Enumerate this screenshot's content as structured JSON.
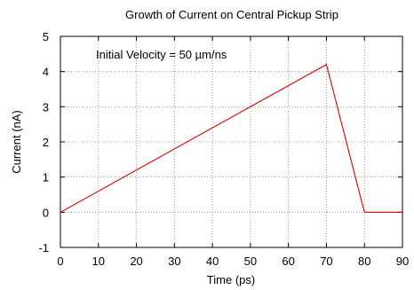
{
  "chart_data": {
    "type": "line",
    "title": "Growth of Current on Central Pickup Strip",
    "xlabel": "Time (ps)",
    "ylabel": "Current (nA)",
    "xlim": [
      0,
      90
    ],
    "ylim": [
      -1,
      5
    ],
    "x_ticks": [
      0,
      10,
      20,
      30,
      40,
      50,
      60,
      70,
      80,
      90
    ],
    "y_ticks": [
      -1,
      0,
      1,
      2,
      3,
      4,
      5
    ],
    "grid": true,
    "annotation": "Initial Velocity = 50 µm/ns",
    "series": [
      {
        "color": "#e00000",
        "x": [
          0,
          70,
          80,
          90
        ],
        "y": [
          0,
          4.2,
          0,
          0
        ]
      }
    ]
  }
}
